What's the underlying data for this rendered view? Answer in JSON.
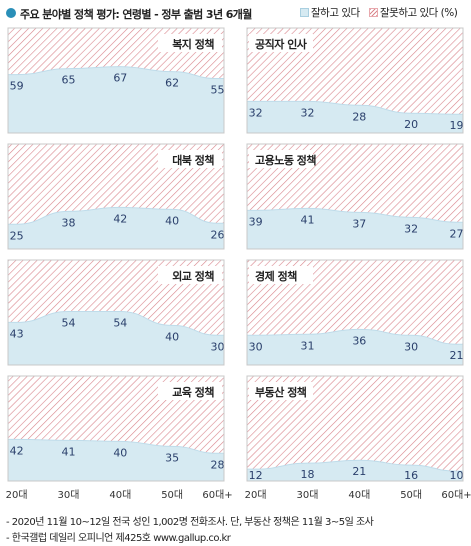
{
  "header": {
    "title": "주요 분야별 정책 평가: 연령별 - 정부 출범 3년 6개월",
    "legend_good": "잘하고 있다",
    "legend_bad": "잘못하고 있다 (%)"
  },
  "chart_data": [
    {
      "type": "area",
      "title": "복지 정책",
      "categories": [
        "20대",
        "30대",
        "40대",
        "50대",
        "60대+"
      ],
      "values": [
        59,
        65,
        67,
        62,
        55
      ]
    },
    {
      "type": "area",
      "title": "공직자 인사",
      "categories": [
        "20대",
        "30대",
        "40대",
        "50대",
        "60대+"
      ],
      "values": [
        32,
        32,
        28,
        20,
        19
      ]
    },
    {
      "type": "area",
      "title": "대북 정책",
      "categories": [
        "20대",
        "30대",
        "40대",
        "50대",
        "60대+"
      ],
      "values": [
        25,
        38,
        42,
        40,
        26
      ]
    },
    {
      "type": "area",
      "title": "고용노동 정책",
      "categories": [
        "20대",
        "30대",
        "40대",
        "50대",
        "60대+"
      ],
      "values": [
        39,
        41,
        37,
        32,
        27
      ]
    },
    {
      "type": "area",
      "title": "외교 정책",
      "categories": [
        "20대",
        "30대",
        "40대",
        "50대",
        "60대+"
      ],
      "values": [
        43,
        54,
        54,
        40,
        30
      ]
    },
    {
      "type": "area",
      "title": "경제 정책",
      "categories": [
        "20대",
        "30대",
        "40대",
        "50대",
        "60대+"
      ],
      "values": [
        30,
        31,
        36,
        30,
        21
      ]
    },
    {
      "type": "area",
      "title": "교육 정책",
      "categories": [
        "20대",
        "30대",
        "40대",
        "50대",
        "60대+"
      ],
      "values": [
        42,
        41,
        40,
        35,
        28
      ]
    },
    {
      "type": "area",
      "title": "부동산 정책",
      "categories": [
        "20대",
        "30대",
        "40대",
        "50대",
        "60대+"
      ],
      "values": [
        12,
        18,
        21,
        16,
        10
      ]
    }
  ],
  "x_labels": [
    "20대",
    "30대",
    "40대",
    "50대",
    "60대+"
  ],
  "notes": [
    "- 2020년 11월 10~12일 전국 성인 1,002명 전화조사. 단, 부동산 정책은 11월 3~5일 조사",
    "- 한국갤럽 데일리 오피니언 제425호 www.gallup.co.kr"
  ],
  "colors": {
    "good_fill": "#d6eaf2",
    "good_line": "#a9cfe0",
    "bad_hatch": "#d9868d",
    "value_text": "#2a3f6b",
    "dot": "#2a8fb8",
    "panel_border": "#c8c8c8"
  }
}
